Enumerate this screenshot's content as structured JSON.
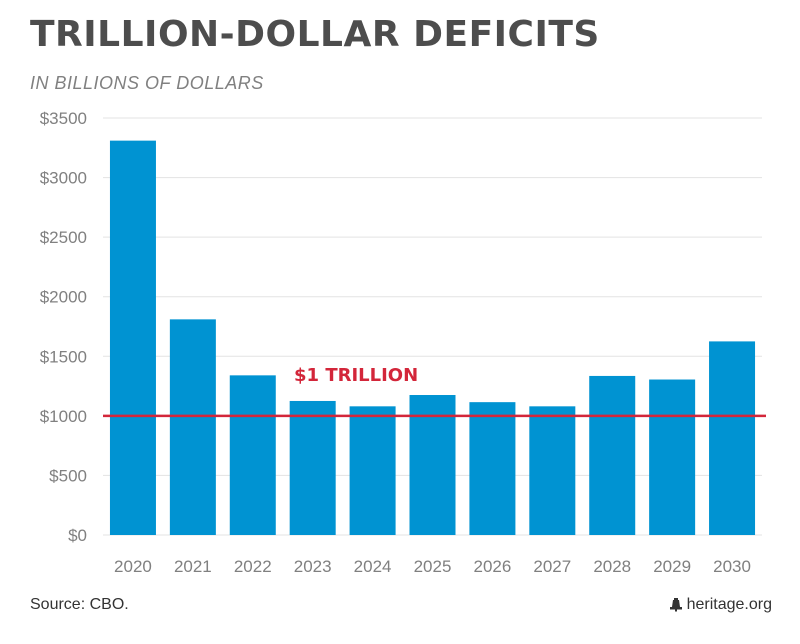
{
  "title": "TRILLION-DOLLAR DEFICITS",
  "subtitle": "IN BILLIONS OF DOLLARS",
  "source": "Source: CBO.",
  "brand": "heritage.org",
  "chart_data": {
    "type": "bar",
    "categories": [
      "2020",
      "2021",
      "2022",
      "2023",
      "2024",
      "2025",
      "2026",
      "2027",
      "2028",
      "2029",
      "2030"
    ],
    "values": [
      3310,
      1810,
      1340,
      1125,
      1080,
      1175,
      1115,
      1080,
      1335,
      1305,
      1625
    ],
    "y_ticks": [
      "$0",
      "$500",
      "$1000",
      "$1500",
      "$2000",
      "$2500",
      "$3000",
      "$3500"
    ],
    "ylim": [
      0,
      3500
    ],
    "grid": true,
    "reference_line": {
      "value": 1000,
      "label": "$1 TRILLION",
      "color": "#d3263a"
    },
    "bar_color": "#0093d2"
  }
}
